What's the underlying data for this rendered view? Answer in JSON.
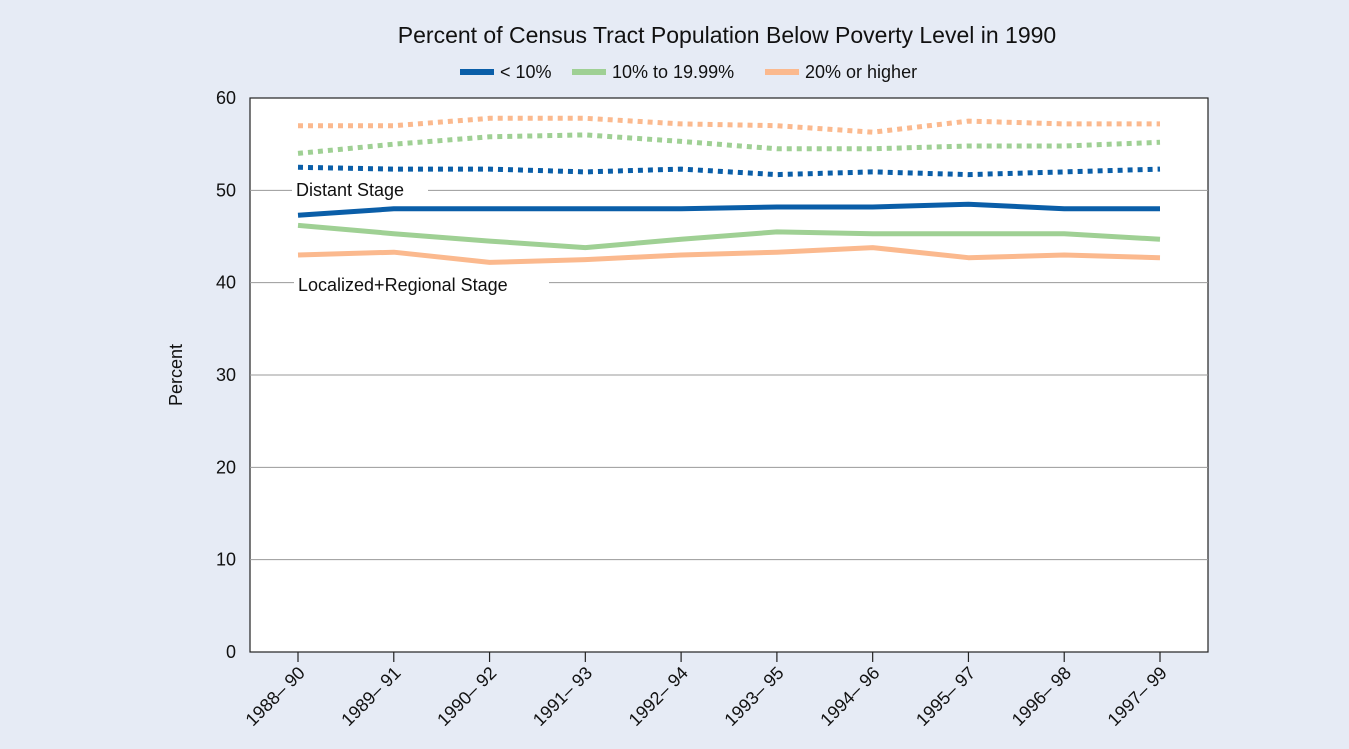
{
  "chart_data": {
    "type": "line",
    "title": "Percent of Census Tract Population Below Poverty Level in 1990",
    "xlabel": "",
    "ylabel": "Percent",
    "ylim": [
      0,
      60
    ],
    "yticks": [
      "0",
      "10",
      "20",
      "30",
      "40",
      "50",
      "60"
    ],
    "categories": [
      "1988– 90",
      "1989– 91",
      "1990– 92",
      "1991– 93",
      "1992– 94",
      "1993– 95",
      "1994– 96",
      "1995– 97",
      "1996– 98",
      "1997– 99"
    ],
    "grid": true,
    "legend_position": "top",
    "legend": [
      {
        "label": "< 10%",
        "color": "#0a5ea8"
      },
      {
        "label": "10% to 19.99%",
        "color": "#9fd094"
      },
      {
        "label": "20% or higher",
        "color": "#fbb98e"
      }
    ],
    "annotations": [
      {
        "text": "Distant Stage"
      },
      {
        "text": "Localized+Regional Stage"
      }
    ],
    "series": [
      {
        "group": "< 10%",
        "stage": "Distant Stage",
        "style": "dotted",
        "color": "#0a5ea8",
        "values": [
          52.5,
          52.3,
          52.3,
          52.0,
          52.3,
          51.7,
          52.0,
          51.7,
          52.0,
          52.3
        ]
      },
      {
        "group": "10% to 19.99%",
        "stage": "Distant Stage",
        "style": "dotted",
        "color": "#9fd094",
        "values": [
          54.0,
          55.0,
          55.8,
          56.0,
          55.3,
          54.5,
          54.5,
          54.8,
          54.8,
          55.2
        ]
      },
      {
        "group": "20% or higher",
        "stage": "Distant Stage",
        "style": "dotted",
        "color": "#fbb98e",
        "values": [
          57.0,
          57.0,
          57.8,
          57.8,
          57.2,
          57.0,
          56.3,
          57.5,
          57.2,
          57.2
        ]
      },
      {
        "group": "< 10%",
        "stage": "Localized+Regional Stage",
        "style": "solid",
        "color": "#0a5ea8",
        "values": [
          47.3,
          48.0,
          48.0,
          48.0,
          48.0,
          48.2,
          48.2,
          48.5,
          48.0,
          48.0
        ]
      },
      {
        "group": "10% to 19.99%",
        "stage": "Localized+Regional Stage",
        "style": "solid",
        "color": "#9fd094",
        "values": [
          46.2,
          45.3,
          44.5,
          43.8,
          44.7,
          45.5,
          45.3,
          45.3,
          45.3,
          44.7
        ]
      },
      {
        "group": "20% or higher",
        "stage": "Localized+Regional Stage",
        "style": "solid",
        "color": "#fbb98e",
        "values": [
          43.0,
          43.3,
          42.2,
          42.5,
          43.0,
          43.3,
          43.8,
          42.7,
          43.0,
          42.7
        ]
      }
    ]
  }
}
